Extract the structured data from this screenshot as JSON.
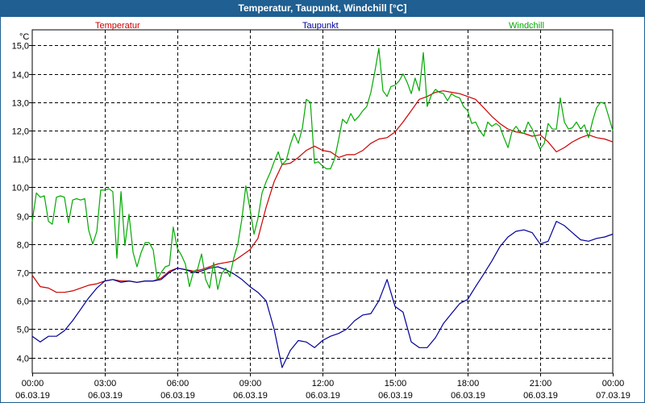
{
  "window": {
    "title": "Temperatur, Taupunkt, Windchill [°C]"
  },
  "chart_data": {
    "type": "line",
    "title": "Temperatur, Taupunkt, Windchill [°C]",
    "ylabel": "°C",
    "xlabel": "",
    "ylim": [
      3.45,
      15.55
    ],
    "xlim": [
      0,
      24
    ],
    "grid": true,
    "legend_placement": "top",
    "y_ticks": [
      {
        "v": 4,
        "label": "4,0"
      },
      {
        "v": 5,
        "label": "5,0"
      },
      {
        "v": 6,
        "label": "6,0"
      },
      {
        "v": 7,
        "label": "7,0"
      },
      {
        "v": 8,
        "label": "8,0"
      },
      {
        "v": 9,
        "label": "9,0"
      },
      {
        "v": 10,
        "label": "10,0"
      },
      {
        "v": 11,
        "label": "11,0"
      },
      {
        "v": 12,
        "label": "12,0"
      },
      {
        "v": 13,
        "label": "13,0"
      },
      {
        "v": 14,
        "label": "14,0"
      },
      {
        "v": 15,
        "label": "15,0"
      }
    ],
    "x_ticks": [
      {
        "v": 0,
        "time": "00:00",
        "date": "06.03.19"
      },
      {
        "v": 3,
        "time": "03:00",
        "date": "06.03.19"
      },
      {
        "v": 6,
        "time": "06:00",
        "date": "06.03.19"
      },
      {
        "v": 9,
        "time": "09:00",
        "date": "06.03.19"
      },
      {
        "v": 12,
        "time": "12:00",
        "date": "06.03.19"
      },
      {
        "v": 15,
        "time": "15:00",
        "date": "06.03.19"
      },
      {
        "v": 18,
        "time": "18:00",
        "date": "06.03.19"
      },
      {
        "v": 21,
        "time": "21:00",
        "date": "06.03.19"
      },
      {
        "v": 24,
        "time": "00:00",
        "date": "07.03.19"
      }
    ],
    "series": [
      {
        "name": "Temperatur",
        "color": "#cc0000",
        "points": [
          [
            0,
            6.9
          ],
          [
            0.33,
            6.5
          ],
          [
            0.67,
            6.45
          ],
          [
            1,
            6.3
          ],
          [
            1.33,
            6.3
          ],
          [
            1.67,
            6.35
          ],
          [
            2,
            6.45
          ],
          [
            2.33,
            6.55
          ],
          [
            2.67,
            6.6
          ],
          [
            3,
            6.7
          ],
          [
            3.33,
            6.75
          ],
          [
            3.67,
            6.7
          ],
          [
            4,
            6.7
          ],
          [
            4.33,
            6.65
          ],
          [
            4.67,
            6.7
          ],
          [
            5,
            6.7
          ],
          [
            5.33,
            6.8
          ],
          [
            5.67,
            7.05
          ],
          [
            6,
            7.15
          ],
          [
            6.33,
            7.1
          ],
          [
            6.67,
            7.05
          ],
          [
            7,
            7.1
          ],
          [
            7.33,
            7.2
          ],
          [
            7.67,
            7.3
          ],
          [
            8,
            7.35
          ],
          [
            8.33,
            7.4
          ],
          [
            8.67,
            7.6
          ],
          [
            9,
            7.8
          ],
          [
            9.33,
            8.2
          ],
          [
            9.67,
            9.3
          ],
          [
            10,
            10.2
          ],
          [
            10.33,
            10.8
          ],
          [
            10.67,
            10.85
          ],
          [
            11,
            11.05
          ],
          [
            11.33,
            11.3
          ],
          [
            11.67,
            11.45
          ],
          [
            12,
            11.3
          ],
          [
            12.33,
            11.25
          ],
          [
            12.67,
            11.05
          ],
          [
            13,
            11.15
          ],
          [
            13.33,
            11.15
          ],
          [
            13.67,
            11.3
          ],
          [
            14,
            11.55
          ],
          [
            14.33,
            11.7
          ],
          [
            14.67,
            11.75
          ],
          [
            15,
            11.95
          ],
          [
            15.33,
            12.3
          ],
          [
            15.67,
            12.7
          ],
          [
            16,
            13.1
          ],
          [
            16.33,
            13.2
          ],
          [
            16.67,
            13.35
          ],
          [
            17,
            13.4
          ],
          [
            17.33,
            13.35
          ],
          [
            17.67,
            13.3
          ],
          [
            18,
            13.2
          ],
          [
            18.33,
            13.1
          ],
          [
            18.67,
            12.8
          ],
          [
            19,
            12.5
          ],
          [
            19.33,
            12.25
          ],
          [
            19.67,
            12.05
          ],
          [
            20,
            11.95
          ],
          [
            20.33,
            11.9
          ],
          [
            20.67,
            11.8
          ],
          [
            21,
            11.85
          ],
          [
            21.33,
            11.6
          ],
          [
            21.67,
            11.25
          ],
          [
            22,
            11.4
          ],
          [
            22.33,
            11.6
          ],
          [
            22.67,
            11.75
          ],
          [
            23,
            11.85
          ],
          [
            23.33,
            11.75
          ],
          [
            23.67,
            11.7
          ],
          [
            24,
            11.6
          ]
        ]
      },
      {
        "name": "Taupunkt",
        "color": "#000099",
        "points": [
          [
            0,
            4.75
          ],
          [
            0.33,
            4.55
          ],
          [
            0.67,
            4.75
          ],
          [
            1,
            4.75
          ],
          [
            1.33,
            4.95
          ],
          [
            1.67,
            5.3
          ],
          [
            2,
            5.7
          ],
          [
            2.33,
            6.1
          ],
          [
            2.67,
            6.45
          ],
          [
            3,
            6.7
          ],
          [
            3.33,
            6.75
          ],
          [
            3.67,
            6.65
          ],
          [
            4,
            6.7
          ],
          [
            4.33,
            6.65
          ],
          [
            4.67,
            6.7
          ],
          [
            5,
            6.7
          ],
          [
            5.33,
            6.75
          ],
          [
            5.67,
            7.0
          ],
          [
            6,
            7.15
          ],
          [
            6.33,
            7.1
          ],
          [
            6.67,
            7.0
          ],
          [
            7,
            7.05
          ],
          [
            7.33,
            7.15
          ],
          [
            7.67,
            7.2
          ],
          [
            8,
            7.1
          ],
          [
            8.33,
            6.95
          ],
          [
            8.67,
            6.75
          ],
          [
            9,
            6.5
          ],
          [
            9.33,
            6.3
          ],
          [
            9.67,
            6.0
          ],
          [
            10,
            5.0
          ],
          [
            10.33,
            3.65
          ],
          [
            10.67,
            4.25
          ],
          [
            11,
            4.6
          ],
          [
            11.33,
            4.55
          ],
          [
            11.67,
            4.35
          ],
          [
            12,
            4.6
          ],
          [
            12.33,
            4.75
          ],
          [
            12.67,
            4.85
          ],
          [
            13,
            5.0
          ],
          [
            13.33,
            5.3
          ],
          [
            13.67,
            5.5
          ],
          [
            14,
            5.55
          ],
          [
            14.33,
            6.0
          ],
          [
            14.67,
            6.75
          ],
          [
            15,
            5.8
          ],
          [
            15.33,
            5.6
          ],
          [
            15.67,
            4.55
          ],
          [
            16,
            4.35
          ],
          [
            16.33,
            4.35
          ],
          [
            16.67,
            4.7
          ],
          [
            17,
            5.2
          ],
          [
            17.33,
            5.55
          ],
          [
            17.67,
            5.9
          ],
          [
            18,
            6.05
          ],
          [
            18.33,
            6.5
          ],
          [
            18.67,
            6.95
          ],
          [
            19,
            7.4
          ],
          [
            19.33,
            7.9
          ],
          [
            19.67,
            8.25
          ],
          [
            20,
            8.45
          ],
          [
            20.33,
            8.5
          ],
          [
            20.67,
            8.4
          ],
          [
            21,
            8.0
          ],
          [
            21.33,
            8.1
          ],
          [
            21.67,
            8.8
          ],
          [
            22,
            8.65
          ],
          [
            22.33,
            8.4
          ],
          [
            22.67,
            8.15
          ],
          [
            23,
            8.1
          ],
          [
            23.33,
            8.2
          ],
          [
            23.67,
            8.25
          ],
          [
            24,
            8.35
          ]
        ]
      },
      {
        "name": "Windchill",
        "color": "#00aa00",
        "points": [
          [
            0,
            8.8
          ],
          [
            0.17,
            9.8
          ],
          [
            0.33,
            9.65
          ],
          [
            0.5,
            9.7
          ],
          [
            0.67,
            8.8
          ],
          [
            0.83,
            8.7
          ],
          [
            1,
            9.65
          ],
          [
            1.17,
            9.7
          ],
          [
            1.33,
            9.65
          ],
          [
            1.5,
            8.75
          ],
          [
            1.67,
            9.55
          ],
          [
            1.83,
            9.6
          ],
          [
            2,
            9.55
          ],
          [
            2.17,
            9.6
          ],
          [
            2.33,
            8.5
          ],
          [
            2.5,
            8.0
          ],
          [
            2.67,
            8.45
          ],
          [
            2.83,
            9.9
          ],
          [
            3,
            9.9
          ],
          [
            3.17,
            9.95
          ],
          [
            3.33,
            9.85
          ],
          [
            3.5,
            7.5
          ],
          [
            3.67,
            9.85
          ],
          [
            3.83,
            7.95
          ],
          [
            4,
            9.05
          ],
          [
            4.17,
            7.7
          ],
          [
            4.33,
            7.2
          ],
          [
            4.5,
            7.7
          ],
          [
            4.67,
            8.05
          ],
          [
            4.83,
            8.05
          ],
          [
            5,
            7.8
          ],
          [
            5.17,
            6.75
          ],
          [
            5.33,
            7.0
          ],
          [
            5.5,
            7.2
          ],
          [
            5.67,
            7.25
          ],
          [
            5.83,
            8.6
          ],
          [
            6,
            7.85
          ],
          [
            6.17,
            7.6
          ],
          [
            6.33,
            7.3
          ],
          [
            6.5,
            6.5
          ],
          [
            6.67,
            7.05
          ],
          [
            6.83,
            7.1
          ],
          [
            7,
            7.65
          ],
          [
            7.17,
            6.75
          ],
          [
            7.33,
            6.45
          ],
          [
            7.5,
            7.35
          ],
          [
            7.67,
            6.4
          ],
          [
            7.83,
            6.95
          ],
          [
            8,
            7.15
          ],
          [
            8.17,
            6.85
          ],
          [
            8.33,
            7.5
          ],
          [
            8.5,
            8.0
          ],
          [
            8.67,
            8.9
          ],
          [
            8.83,
            10.05
          ],
          [
            9,
            9.25
          ],
          [
            9.17,
            8.35
          ],
          [
            9.33,
            8.9
          ],
          [
            9.5,
            9.8
          ],
          [
            9.67,
            10.2
          ],
          [
            9.83,
            10.5
          ],
          [
            10,
            10.9
          ],
          [
            10.17,
            11.25
          ],
          [
            10.33,
            10.8
          ],
          [
            10.5,
            10.95
          ],
          [
            10.67,
            11.5
          ],
          [
            10.83,
            11.9
          ],
          [
            11,
            11.55
          ],
          [
            11.17,
            12.1
          ],
          [
            11.33,
            13.1
          ],
          [
            11.5,
            13.0
          ],
          [
            11.67,
            10.85
          ],
          [
            11.83,
            10.9
          ],
          [
            12,
            10.75
          ],
          [
            12.17,
            10.65
          ],
          [
            12.33,
            10.65
          ],
          [
            12.5,
            11.0
          ],
          [
            12.67,
            11.7
          ],
          [
            12.83,
            12.4
          ],
          [
            13,
            12.25
          ],
          [
            13.17,
            12.6
          ],
          [
            13.33,
            12.35
          ],
          [
            13.5,
            12.5
          ],
          [
            13.67,
            12.7
          ],
          [
            13.83,
            12.85
          ],
          [
            14,
            13.35
          ],
          [
            14.17,
            14.1
          ],
          [
            14.33,
            14.9
          ],
          [
            14.5,
            13.4
          ],
          [
            14.67,
            13.2
          ],
          [
            14.83,
            13.55
          ],
          [
            15,
            13.6
          ],
          [
            15.17,
            13.75
          ],
          [
            15.33,
            14.0
          ],
          [
            15.5,
            13.7
          ],
          [
            15.67,
            13.3
          ],
          [
            15.83,
            13.85
          ],
          [
            16,
            13.4
          ],
          [
            16.17,
            14.75
          ],
          [
            16.33,
            12.85
          ],
          [
            16.5,
            13.25
          ],
          [
            16.67,
            13.45
          ],
          [
            16.83,
            13.35
          ],
          [
            17,
            13.3
          ],
          [
            17.17,
            13.05
          ],
          [
            17.33,
            13.3
          ],
          [
            17.5,
            13.2
          ],
          [
            17.67,
            13.15
          ],
          [
            17.83,
            12.85
          ],
          [
            18,
            12.7
          ],
          [
            18.17,
            12.25
          ],
          [
            18.33,
            12.3
          ],
          [
            18.5,
            12.0
          ],
          [
            18.67,
            11.8
          ],
          [
            18.83,
            12.3
          ],
          [
            19,
            12.15
          ],
          [
            19.17,
            12.25
          ],
          [
            19.33,
            12.15
          ],
          [
            19.5,
            11.75
          ],
          [
            19.67,
            11.4
          ],
          [
            19.83,
            11.95
          ],
          [
            20,
            12.15
          ],
          [
            20.17,
            11.95
          ],
          [
            20.33,
            11.9
          ],
          [
            20.5,
            12.3
          ],
          [
            20.67,
            12.05
          ],
          [
            20.83,
            11.7
          ],
          [
            21,
            11.35
          ],
          [
            21.17,
            11.55
          ],
          [
            21.33,
            12.25
          ],
          [
            21.5,
            12.05
          ],
          [
            21.67,
            12.05
          ],
          [
            21.83,
            13.15
          ],
          [
            22,
            12.3
          ],
          [
            22.17,
            12.05
          ],
          [
            22.33,
            12.1
          ],
          [
            22.5,
            12.3
          ],
          [
            22.67,
            12.05
          ],
          [
            22.83,
            12.2
          ],
          [
            23,
            11.75
          ],
          [
            23.17,
            12.35
          ],
          [
            23.33,
            12.8
          ],
          [
            23.5,
            13.0
          ],
          [
            23.67,
            12.95
          ],
          [
            23.83,
            12.5
          ],
          [
            24,
            12.0
          ]
        ]
      }
    ]
  }
}
